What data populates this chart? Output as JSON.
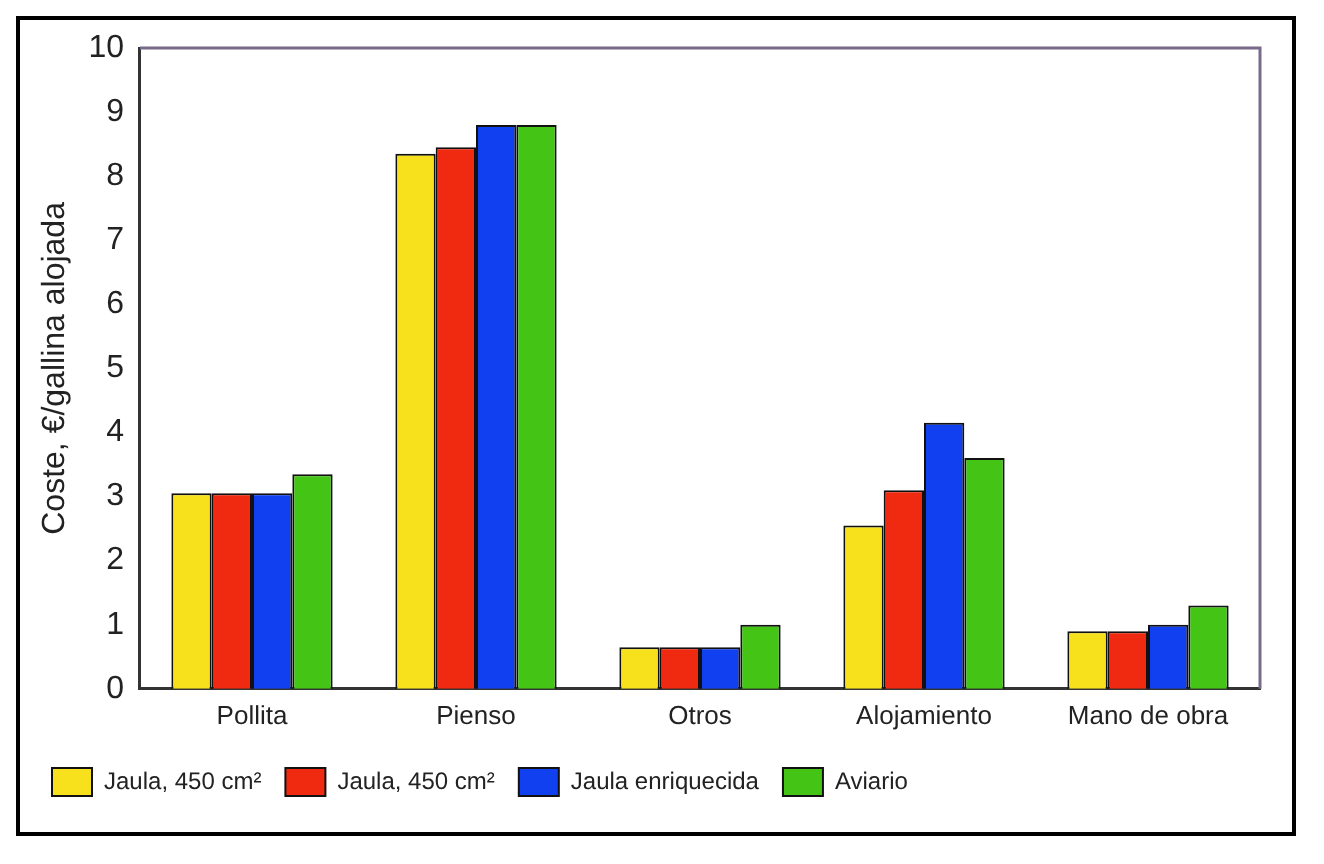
{
  "chart_data": {
    "type": "bar",
    "ylabel": "Coste, €/gallina alojada",
    "categories": [
      "Pollita",
      "Pienso",
      "Otros",
      "Alojamiento",
      "Mano de obra"
    ],
    "series": [
      {
        "name": "Jaula, 450 cm²",
        "color": "#f7e01c",
        "values": [
          3.05,
          8.35,
          0.65,
          2.55,
          0.9
        ]
      },
      {
        "name": "Jaula, 450 cm²",
        "color": "#f02a10",
        "values": [
          3.05,
          8.45,
          0.65,
          3.1,
          0.9
        ]
      },
      {
        "name": "Jaula enriquecida",
        "color": "#1040f0",
        "values": [
          3.05,
          8.8,
          0.65,
          4.15,
          1.0
        ]
      },
      {
        "name": "Aviario",
        "color": "#44c414",
        "values": [
          3.35,
          8.8,
          1.0,
          3.6,
          1.3
        ]
      }
    ],
    "ylim": [
      0,
      10
    ],
    "yticks": [
      0,
      1,
      2,
      3,
      4,
      5,
      6,
      7,
      8,
      9,
      10
    ],
    "grid": false,
    "legend": "bottom"
  }
}
